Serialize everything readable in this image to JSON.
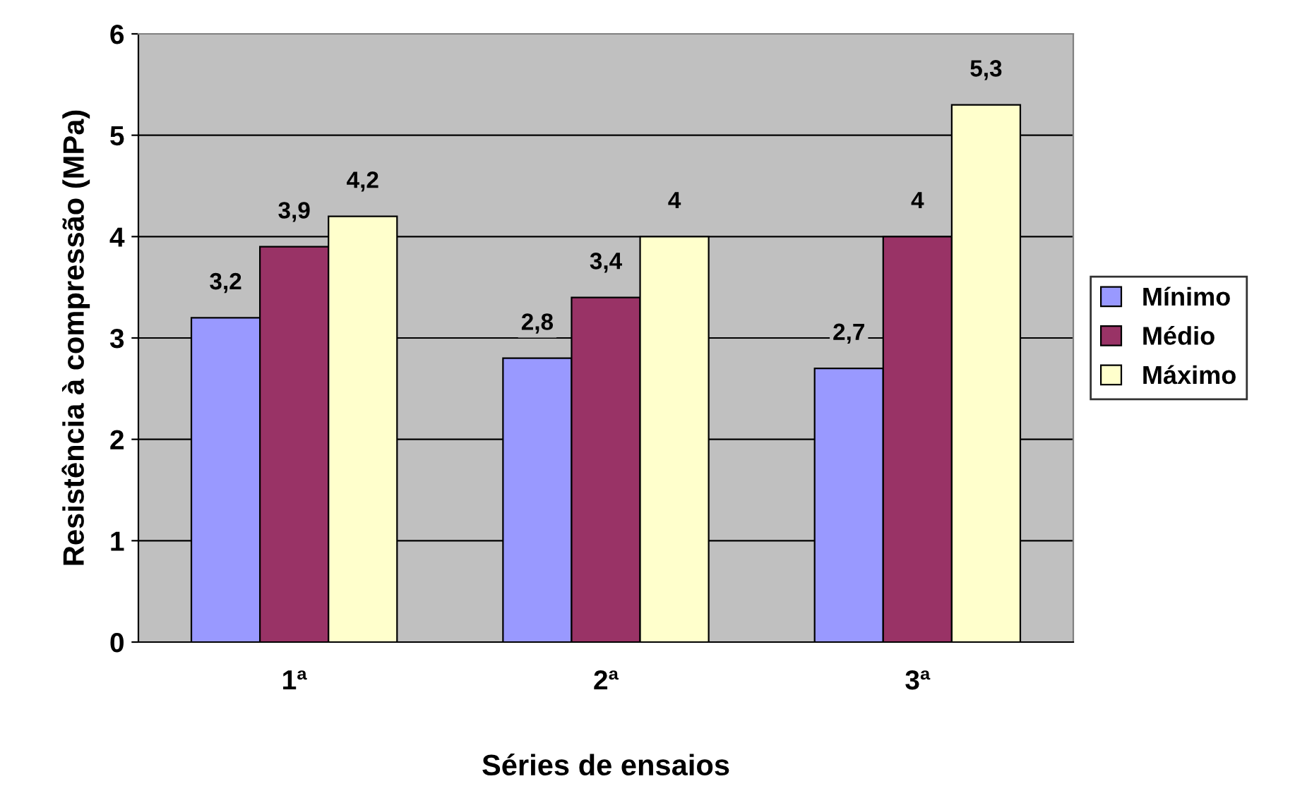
{
  "chart_data": {
    "type": "bar",
    "xlabel": "Séries de ensaios",
    "ylabel": "Resistência à compressão (MPa)",
    "categories": [
      "1ª",
      "2ª",
      "3ª"
    ],
    "series": [
      {
        "name": "Mínimo",
        "color": "#9999ff",
        "values": [
          3.2,
          2.8,
          2.7
        ],
        "value_labels": [
          "3,2",
          "2,8",
          "2,7"
        ]
      },
      {
        "name": "Médio",
        "color": "#993366",
        "values": [
          3.9,
          3.4,
          4
        ],
        "value_labels": [
          "3,9",
          "3,4",
          "4"
        ]
      },
      {
        "name": "Máximo",
        "color": "#ffffcc",
        "values": [
          4.2,
          4,
          5.3
        ],
        "value_labels": [
          "4,2",
          "4",
          "5,3"
        ]
      }
    ],
    "ylim": [
      0,
      6
    ],
    "yticks": [
      0,
      1,
      2,
      3,
      4,
      5,
      6
    ],
    "grid": "y",
    "legend": "right"
  }
}
